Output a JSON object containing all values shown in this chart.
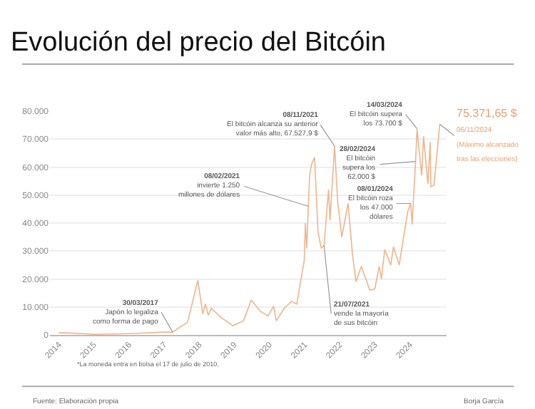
{
  "chart_data": {
    "type": "line",
    "title": "Evolución del precio del Bitcóin",
    "x": [
      "2014-01-01",
      "2014-06-01",
      "2015-01-15",
      "2015-11-01",
      "2016-06-15",
      "2017-01-01",
      "2017-03-30",
      "2017-06-10",
      "2017-09-01",
      "2017-12-17",
      "2018-02-06",
      "2018-03-05",
      "2018-04-06",
      "2018-05-05",
      "2018-08-14",
      "2018-11-25",
      "2018-12-15",
      "2019-04-05",
      "2019-06-26",
      "2019-09-25",
      "2019-12-17",
      "2020-02-12",
      "2020-03-12",
      "2020-06-01",
      "2020-08-17",
      "2020-10-10",
      "2020-12-27",
      "2021-01-08",
      "2021-01-22",
      "2021-02-08",
      "2021-02-21",
      "2021-03-13",
      "2021-04-14",
      "2021-05-19",
      "2021-06-22",
      "2021-07-21",
      "2021-09-06",
      "2021-09-21",
      "2021-11-08",
      "2021-12-10",
      "2022-01-22",
      "2022-03-28",
      "2022-05-12",
      "2022-06-18",
      "2022-08-13",
      "2022-11-09",
      "2022-12-31",
      "2023-02-15",
      "2023-03-10",
      "2023-04-13",
      "2023-06-15",
      "2023-07-13",
      "2023-09-11",
      "2023-10-24",
      "2023-12-08",
      "2024-01-08",
      "2024-01-23",
      "2024-02-28",
      "2024-03-14",
      "2024-05-01",
      "2024-05-21",
      "2024-07-05",
      "2024-07-29",
      "2024-08-05",
      "2024-09-06",
      "2024-10-29",
      "2024-11-06"
    ],
    "series": [
      {
        "color": "#f0b48a",
        "values": [
          800,
          600,
          200,
          400,
          700,
          1000,
          1000,
          2700,
          4500,
          19500,
          7500,
          11000,
          7000,
          9500,
          6300,
          3800,
          3300,
          5000,
          12500,
          8500,
          6800,
          10200,
          5000,
          9500,
          12000,
          11000,
          26500,
          40000,
          31000,
          46000,
          57000,
          61000,
          63500,
          37000,
          31000,
          32000,
          52000,
          41000,
          67500,
          47500,
          35000,
          47000,
          29000,
          19000,
          24500,
          16000,
          16500,
          24500,
          20000,
          30500,
          25000,
          31500,
          25000,
          34500,
          44000,
          47000,
          39500,
          62000,
          73700,
          57000,
          71000,
          54000,
          69000,
          53000,
          53500,
          72500,
          75371.65
        ]
      }
    ],
    "xlim": [
      "2013-10-01",
      "2025-01-15"
    ],
    "xticks": [
      {
        "value": "2014-01-01",
        "label": "2014"
      },
      {
        "value": "2015-01-01",
        "label": "2015"
      },
      {
        "value": "2016-01-01",
        "label": "2016"
      },
      {
        "value": "2017-01-01",
        "label": "2017"
      },
      {
        "value": "2018-01-01",
        "label": "2018"
      },
      {
        "value": "2019-01-01",
        "label": "2019"
      },
      {
        "value": "2020-01-01",
        "label": "2020"
      },
      {
        "value": "2021-01-01",
        "label": "2021"
      },
      {
        "value": "2022-01-01",
        "label": "2022"
      },
      {
        "value": "2023-01-01",
        "label": "2023"
      },
      {
        "value": "2024-01-01",
        "label": "2024"
      }
    ],
    "ylim": [
      0,
      80000
    ],
    "yticks": [
      {
        "value": 0,
        "label": "0"
      },
      {
        "value": 10000,
        "label": "10.000"
      },
      {
        "value": 20000,
        "label": "20.000"
      },
      {
        "value": 30000,
        "label": "30.000"
      },
      {
        "value": 40000,
        "label": "40.000"
      },
      {
        "value": 50000,
        "label": "50.000"
      },
      {
        "value": 60000,
        "label": "60.000"
      },
      {
        "value": 70000,
        "label": "70.000"
      },
      {
        "value": 80000,
        "label": "80.000"
      }
    ],
    "grid": "y",
    "annotations": [
      {
        "text": "**30/03/2017**\nJapón lo legaliza\ncomo forma de pago",
        "x": "2017-03-30",
        "y": 1000
      },
      {
        "text": "**08/02/2021**\ninvierte 1.250\nmillones de dólares",
        "x": "2021-02-08",
        "y": 46000
      },
      {
        "text": "**08/11/2021**\nEl bitcóin alcanza su anterior\nvalor más alto, 67.527,9 $",
        "x": "2021-11-08",
        "y": 67500
      },
      {
        "text": "**21/07/2021**\nvende la mayoría\nde sus bitcóin",
        "x": "2021-07-21",
        "y": 32000
      },
      {
        "text": "**08/01/2024**\nEl bitcóin roza\nlos 47.000\ndólares",
        "x": "2024-01-08",
        "y": 47000
      },
      {
        "text": "**28/02/2024**\nEl bitcóin\nsupera los\n62.000 $",
        "x": "2024-02-28",
        "y": 62000
      },
      {
        "text": "**14/03/2024**\nEl bitcóin supera\nlos 73.700 $",
        "x": "2024-03-14",
        "y": 73700
      },
      {
        "text": "75.371,65 $\n06/11/2024\n(Máximo alcanzado\ntras las elecciones)",
        "x": "2024-11-06",
        "y": 75371.65
      },
      "*La moneda entra en bolsa el 17 de julio de 2010.",
      "Fuente: Elaboración propia",
      "Borja García"
    ]
  }
}
